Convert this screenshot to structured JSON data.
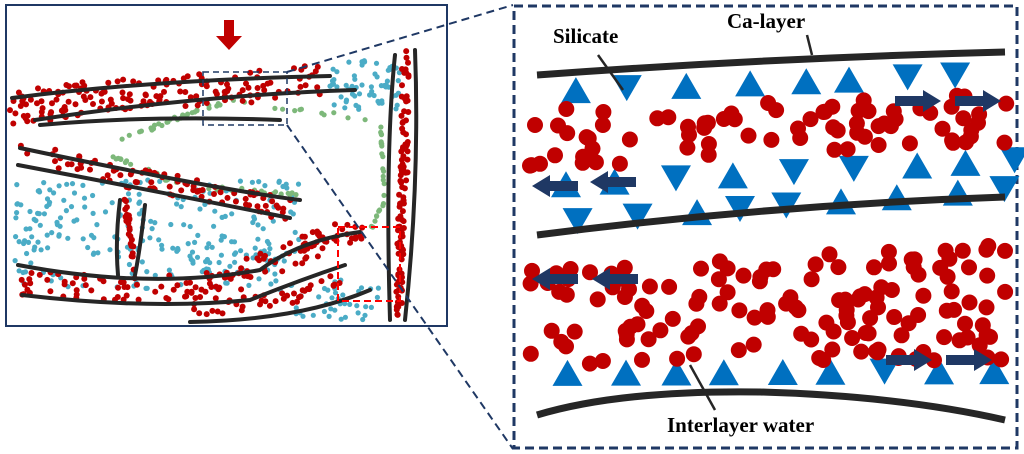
{
  "labels": {
    "silicate": "Silicate",
    "ca_layer": "Ca-layer",
    "interlayer_water": "Interlayer water"
  },
  "colors": {
    "water_dot": "#C00000",
    "silicate": "#0070C0",
    "flow_arrow": "#1F3864",
    "layer_line": "#262626",
    "pore_dot_blue": "#4BACC6",
    "pore_dot_green": "#7DB87A",
    "load_arrow": "#C00000",
    "zoom_box_red": "#FF0000"
  },
  "icons": {
    "load": "down-arrow",
    "flow_right": "right-arrow",
    "flow_left": "left-arrow"
  }
}
